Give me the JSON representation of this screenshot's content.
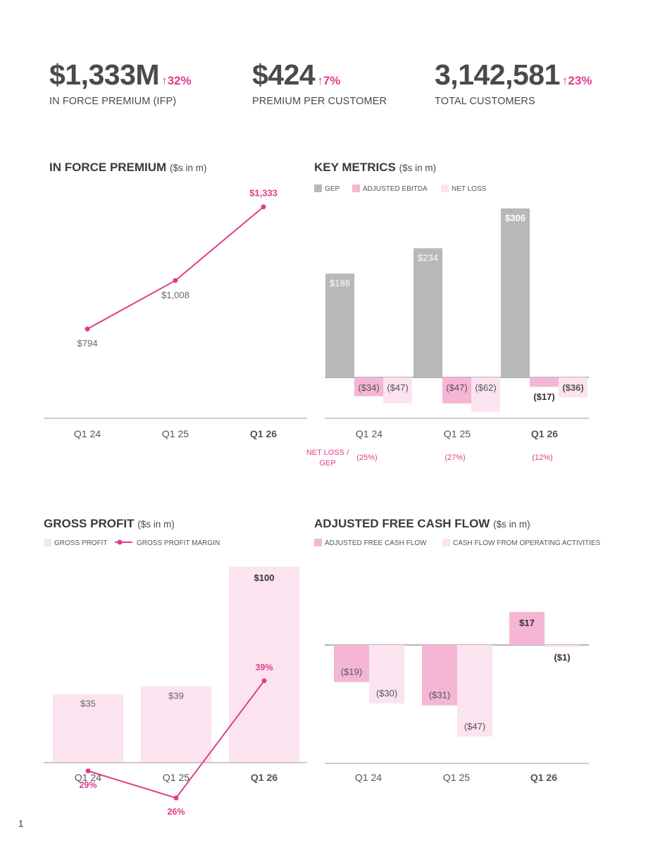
{
  "colors": {
    "accent": "#e03c8c",
    "gep": "#b8b8b8",
    "ebitda": "#f4b6d4",
    "net_loss": "#fbe4ef",
    "gross_profit": "#fbe4ef",
    "afcf": "#f4b6d4",
    "cfo": "#fbe4ef",
    "axis": "#9a9a9a"
  },
  "kpis": [
    {
      "value": "$1,333M",
      "change": "↑32%",
      "label": "IN FORCE PREMIUM (IFP)"
    },
    {
      "value": "$424",
      "change": "↑7%",
      "label": "PREMIUM PER CUSTOMER"
    },
    {
      "value": "3,142,581",
      "change": "↑23%",
      "label": "TOTAL CUSTOMERS"
    }
  ],
  "page_number": "1",
  "chart_data": [
    {
      "type": "line",
      "title": "IN FORCE PREMIUM",
      "unit": "($s in m)",
      "categories": [
        "Q1 24",
        "Q1 25",
        "Q1 26"
      ],
      "series": [
        {
          "values": [
            794,
            1008,
            1333
          ]
        }
      ],
      "data_labels": [
        "$794",
        "$1,008",
        "$1,333"
      ],
      "ylim": [
        400,
        1500
      ]
    },
    {
      "type": "bar",
      "title": "KEY METRICS",
      "unit": "($s in m)",
      "categories": [
        "Q1 24",
        "Q1 25",
        "Q1 26"
      ],
      "series": [
        {
          "name": "GEP",
          "values": [
            188,
            234,
            306
          ],
          "labels": [
            "$188",
            "$234",
            "$306"
          ]
        },
        {
          "name": "ADJUSTED EBITDA",
          "values": [
            -34,
            -47,
            -17
          ],
          "labels": [
            "($34)",
            "($47)",
            "($17)"
          ]
        },
        {
          "name": "NET LOSS",
          "values": [
            -47,
            -62,
            -36
          ],
          "labels": [
            "($47)",
            "($62)",
            "($36)"
          ]
        }
      ],
      "legend": "top-left",
      "ylim": [
        -80,
        320
      ],
      "ratio": {
        "label": "NET LOSS / GEP",
        "values": [
          "(25%)",
          "(27%)",
          "(12%)"
        ]
      }
    },
    {
      "type": "bar",
      "title": "GROSS PROFIT",
      "unit": "($s in m)",
      "categories": [
        "Q1 24",
        "Q1 25",
        "Q1 26"
      ],
      "series": [
        {
          "name": "GROSS PROFIT",
          "values": [
            35,
            39,
            100
          ],
          "labels": [
            "$35",
            "$39",
            "$100"
          ]
        },
        {
          "name": "GROSS PROFIT MARGIN",
          "type": "line",
          "values": [
            29,
            26,
            39
          ],
          "labels": [
            "29%",
            "26%",
            "39%"
          ]
        }
      ],
      "legend": "top-left",
      "ylim": [
        0,
        100
      ],
      "margin_ylim": [
        20,
        45
      ]
    },
    {
      "type": "bar",
      "title": "ADJUSTED FREE CASH FLOW",
      "unit": "($s in m)",
      "categories": [
        "Q1 24",
        "Q1 25",
        "Q1 26"
      ],
      "series": [
        {
          "name": "ADJUSTED FREE CASH FLOW",
          "values": [
            -19,
            -31,
            17
          ],
          "labels": [
            "($19)",
            "($31)",
            "$17"
          ]
        },
        {
          "name": "CASH FLOW FROM OPERATING ACTIVITIES",
          "values": [
            -30,
            -47,
            -1
          ],
          "labels": [
            "($30)",
            "($47)",
            "($1)"
          ]
        }
      ],
      "legend": "top-left",
      "ylim": [
        -60,
        25
      ]
    }
  ]
}
